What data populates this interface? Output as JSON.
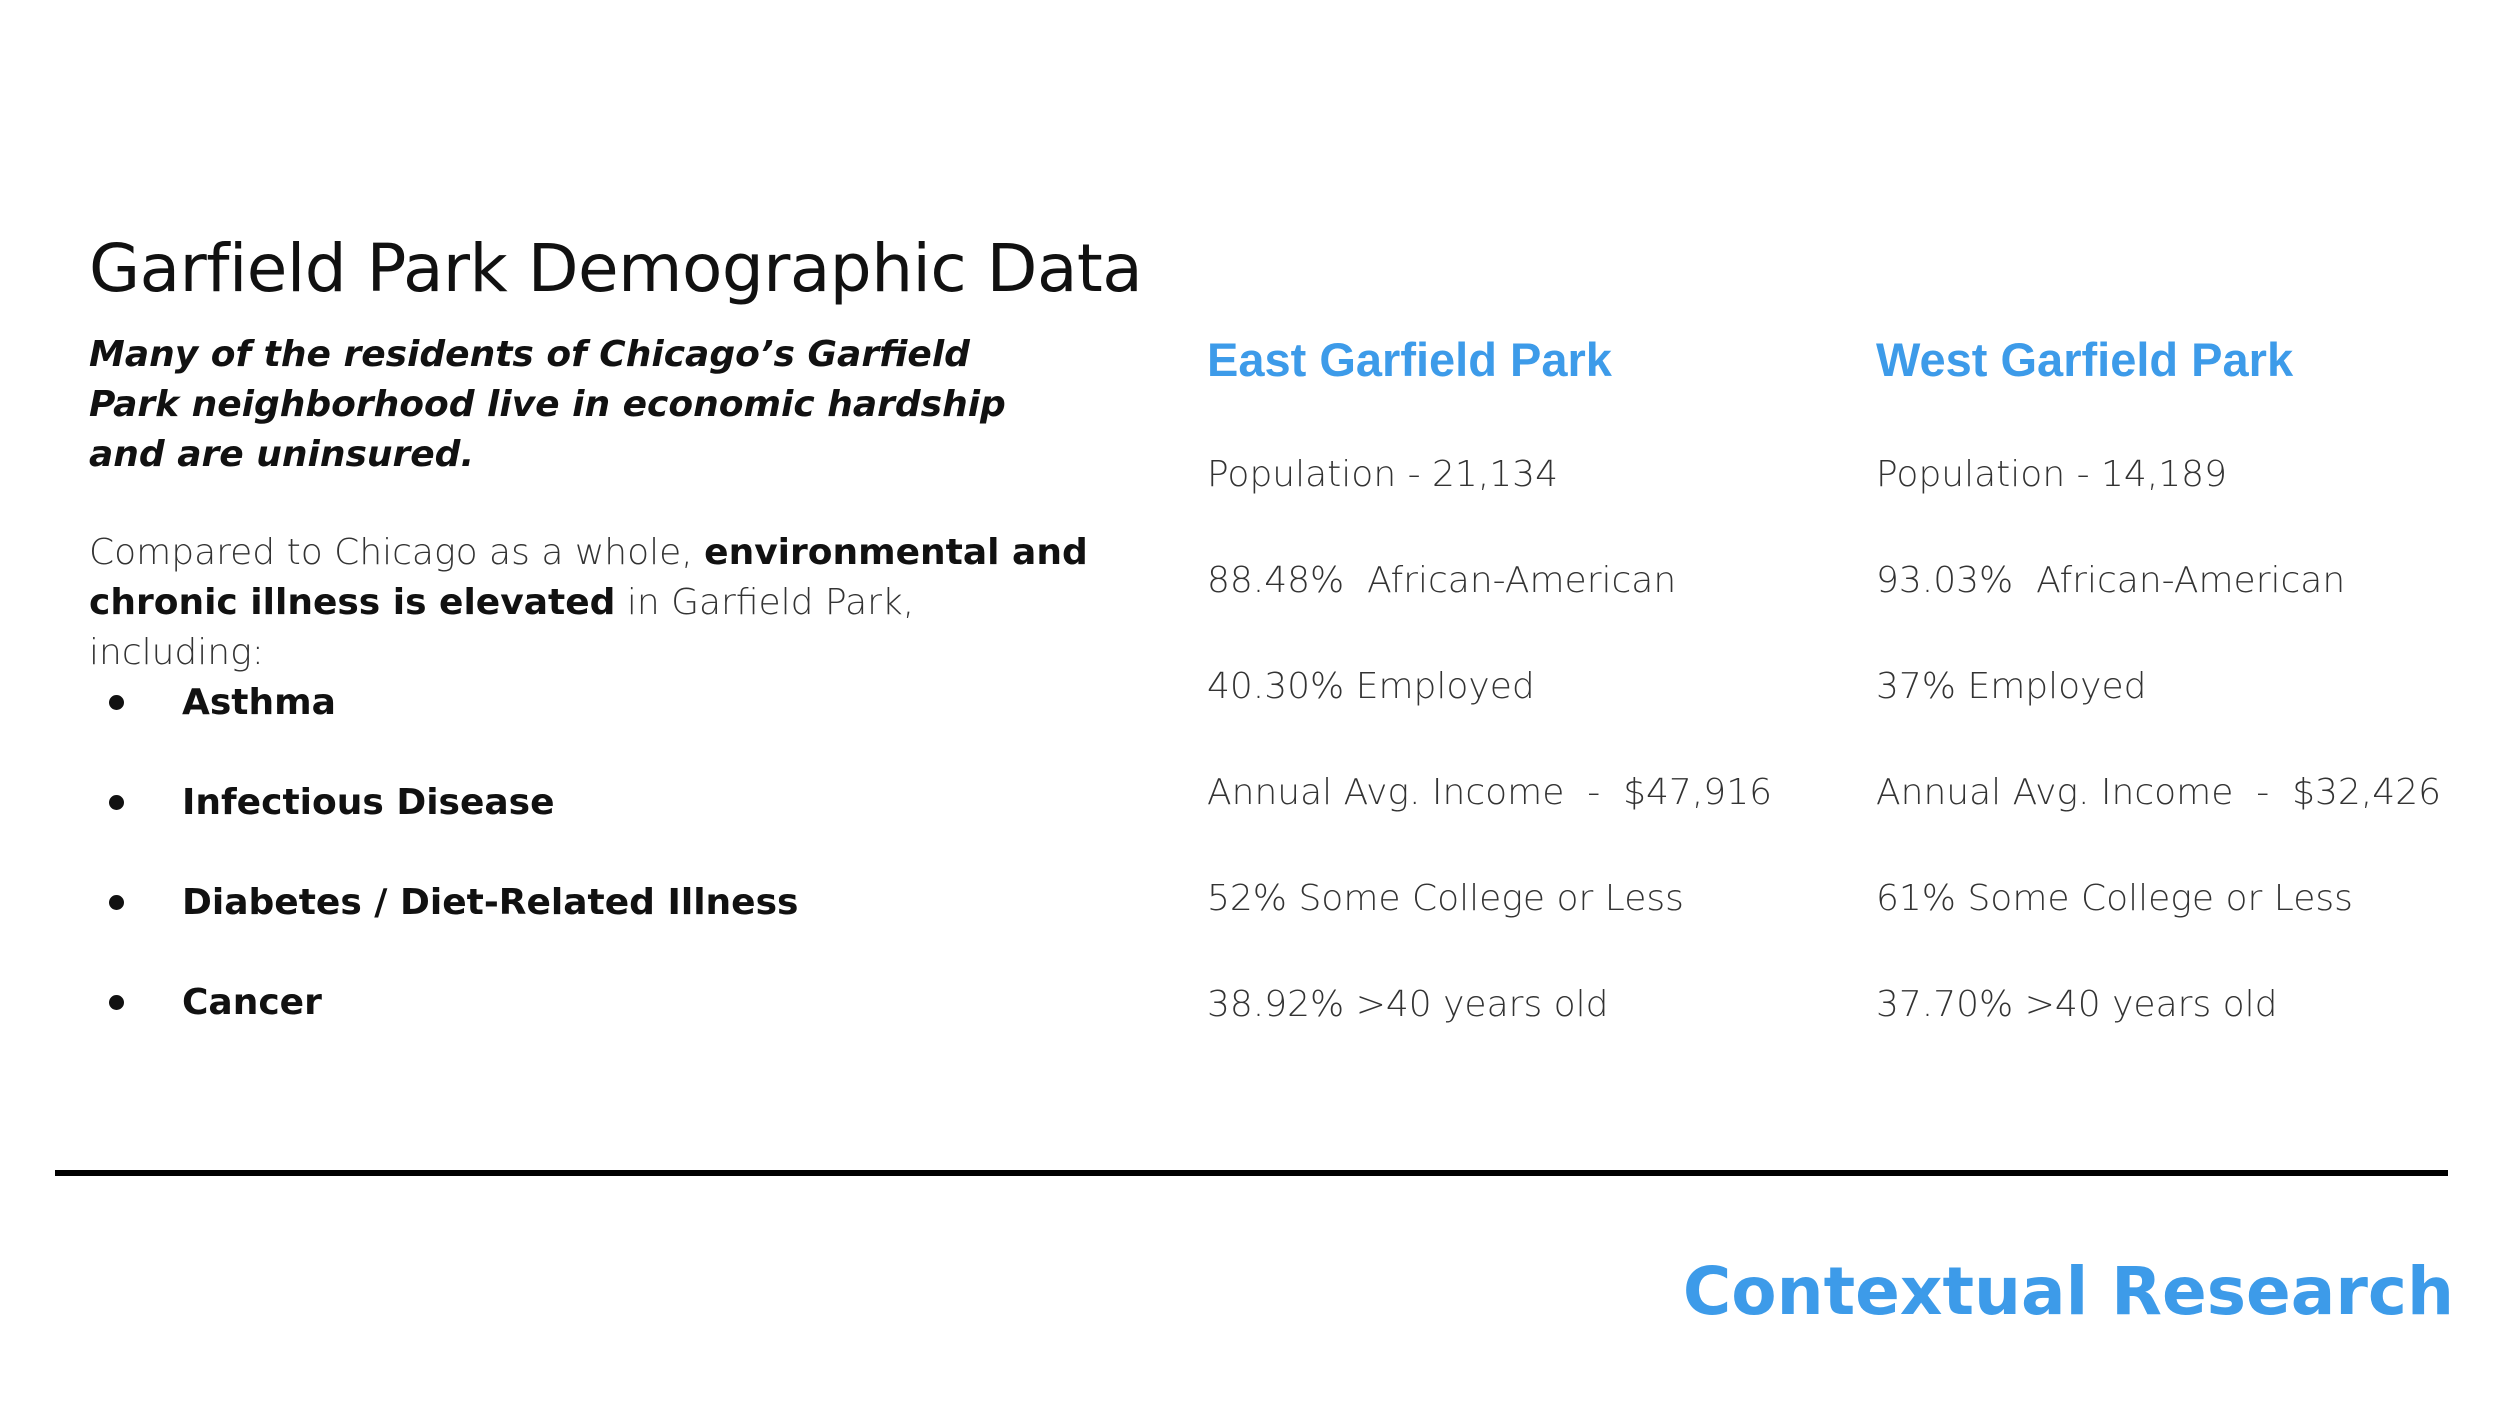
{
  "title": "Garfield Park Demographic Data",
  "intro": "Many of the residents of Chicago’s Garfield Park neighborhood live in economic hardship and are uninsured.",
  "comparison": {
    "prefix": "Compared to Chicago as a whole, ",
    "emphasis": "environmental and chronic illness is elevated",
    "suffix": " in Garfield Park, including:"
  },
  "illnesses": [
    "Asthma",
    "Infectious Disease",
    "Diabetes / Diet-Related Illness",
    "Cancer"
  ],
  "east": {
    "heading": "East Garfield Park",
    "stats": [
      "Population - 21,134",
      "88.48%  African-American",
      "40.30% Employed",
      "Annual Avg. Income  -  $47,916",
      "52% Some College or Less",
      "38.92% >40 years old"
    ]
  },
  "west": {
    "heading": "West Garfield Park",
    "stats": [
      "Population - 14,189",
      "93.03%  African-American",
      "37% Employed",
      "Annual Avg. Income  -  $32,426",
      "61% Some College or Less",
      "37.70% >40 years old"
    ]
  },
  "footer": "Contextual Research",
  "colors": {
    "accent": "#3d9be9",
    "text": "#111111",
    "divider": "#000000"
  }
}
